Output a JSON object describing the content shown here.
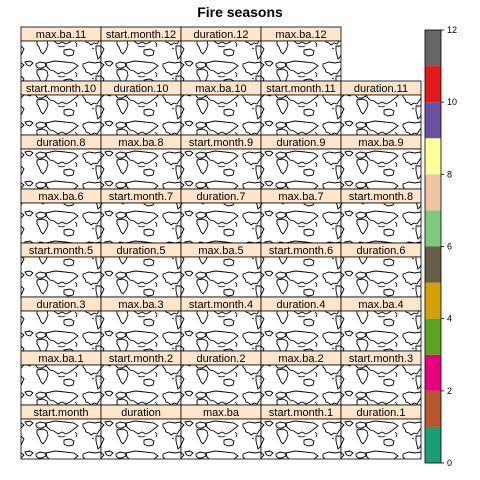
{
  "chart_data": {
    "type": "heatmap",
    "title": "Fire seasons",
    "panels": [
      [
        "max.ba.11",
        "start.month.12",
        "duration.12",
        "max.ba.12"
      ],
      [
        "start.month.10",
        "duration.10",
        "max.ba.10",
        "start.month.11",
        "duration.11"
      ],
      [
        "duration.8",
        "max.ba.8",
        "start.month.9",
        "duration.9",
        "max.ba.9"
      ],
      [
        "max.ba.6",
        "start.month.7",
        "duration.7",
        "max.ba.7",
        "start.month.8"
      ],
      [
        "start.month.5",
        "duration.5",
        "max.ba.5",
        "start.month.6",
        "duration.6"
      ],
      [
        "duration.3",
        "max.ba.3",
        "start.month.4",
        "duration.4",
        "max.ba.4"
      ],
      [
        "max.ba.1",
        "start.month.2",
        "duration.2",
        "max.ba.2",
        "start.month.3"
      ],
      [
        "start.month",
        "duration",
        "max.ba",
        "start.month.1",
        "duration.1"
      ]
    ],
    "colorbar": {
      "range": [
        0,
        12
      ],
      "ticks": [
        0,
        2,
        4,
        6,
        8,
        10,
        12
      ],
      "colors": [
        "#1b9e77",
        "#b5562d",
        "#e6007e",
        "#5ba320",
        "#d4a00a",
        "#665e49",
        "#7fc97f",
        "#f0c3a6",
        "#ffff99",
        "#6a51a3",
        "#e31a1c",
        "#666666"
      ]
    }
  }
}
